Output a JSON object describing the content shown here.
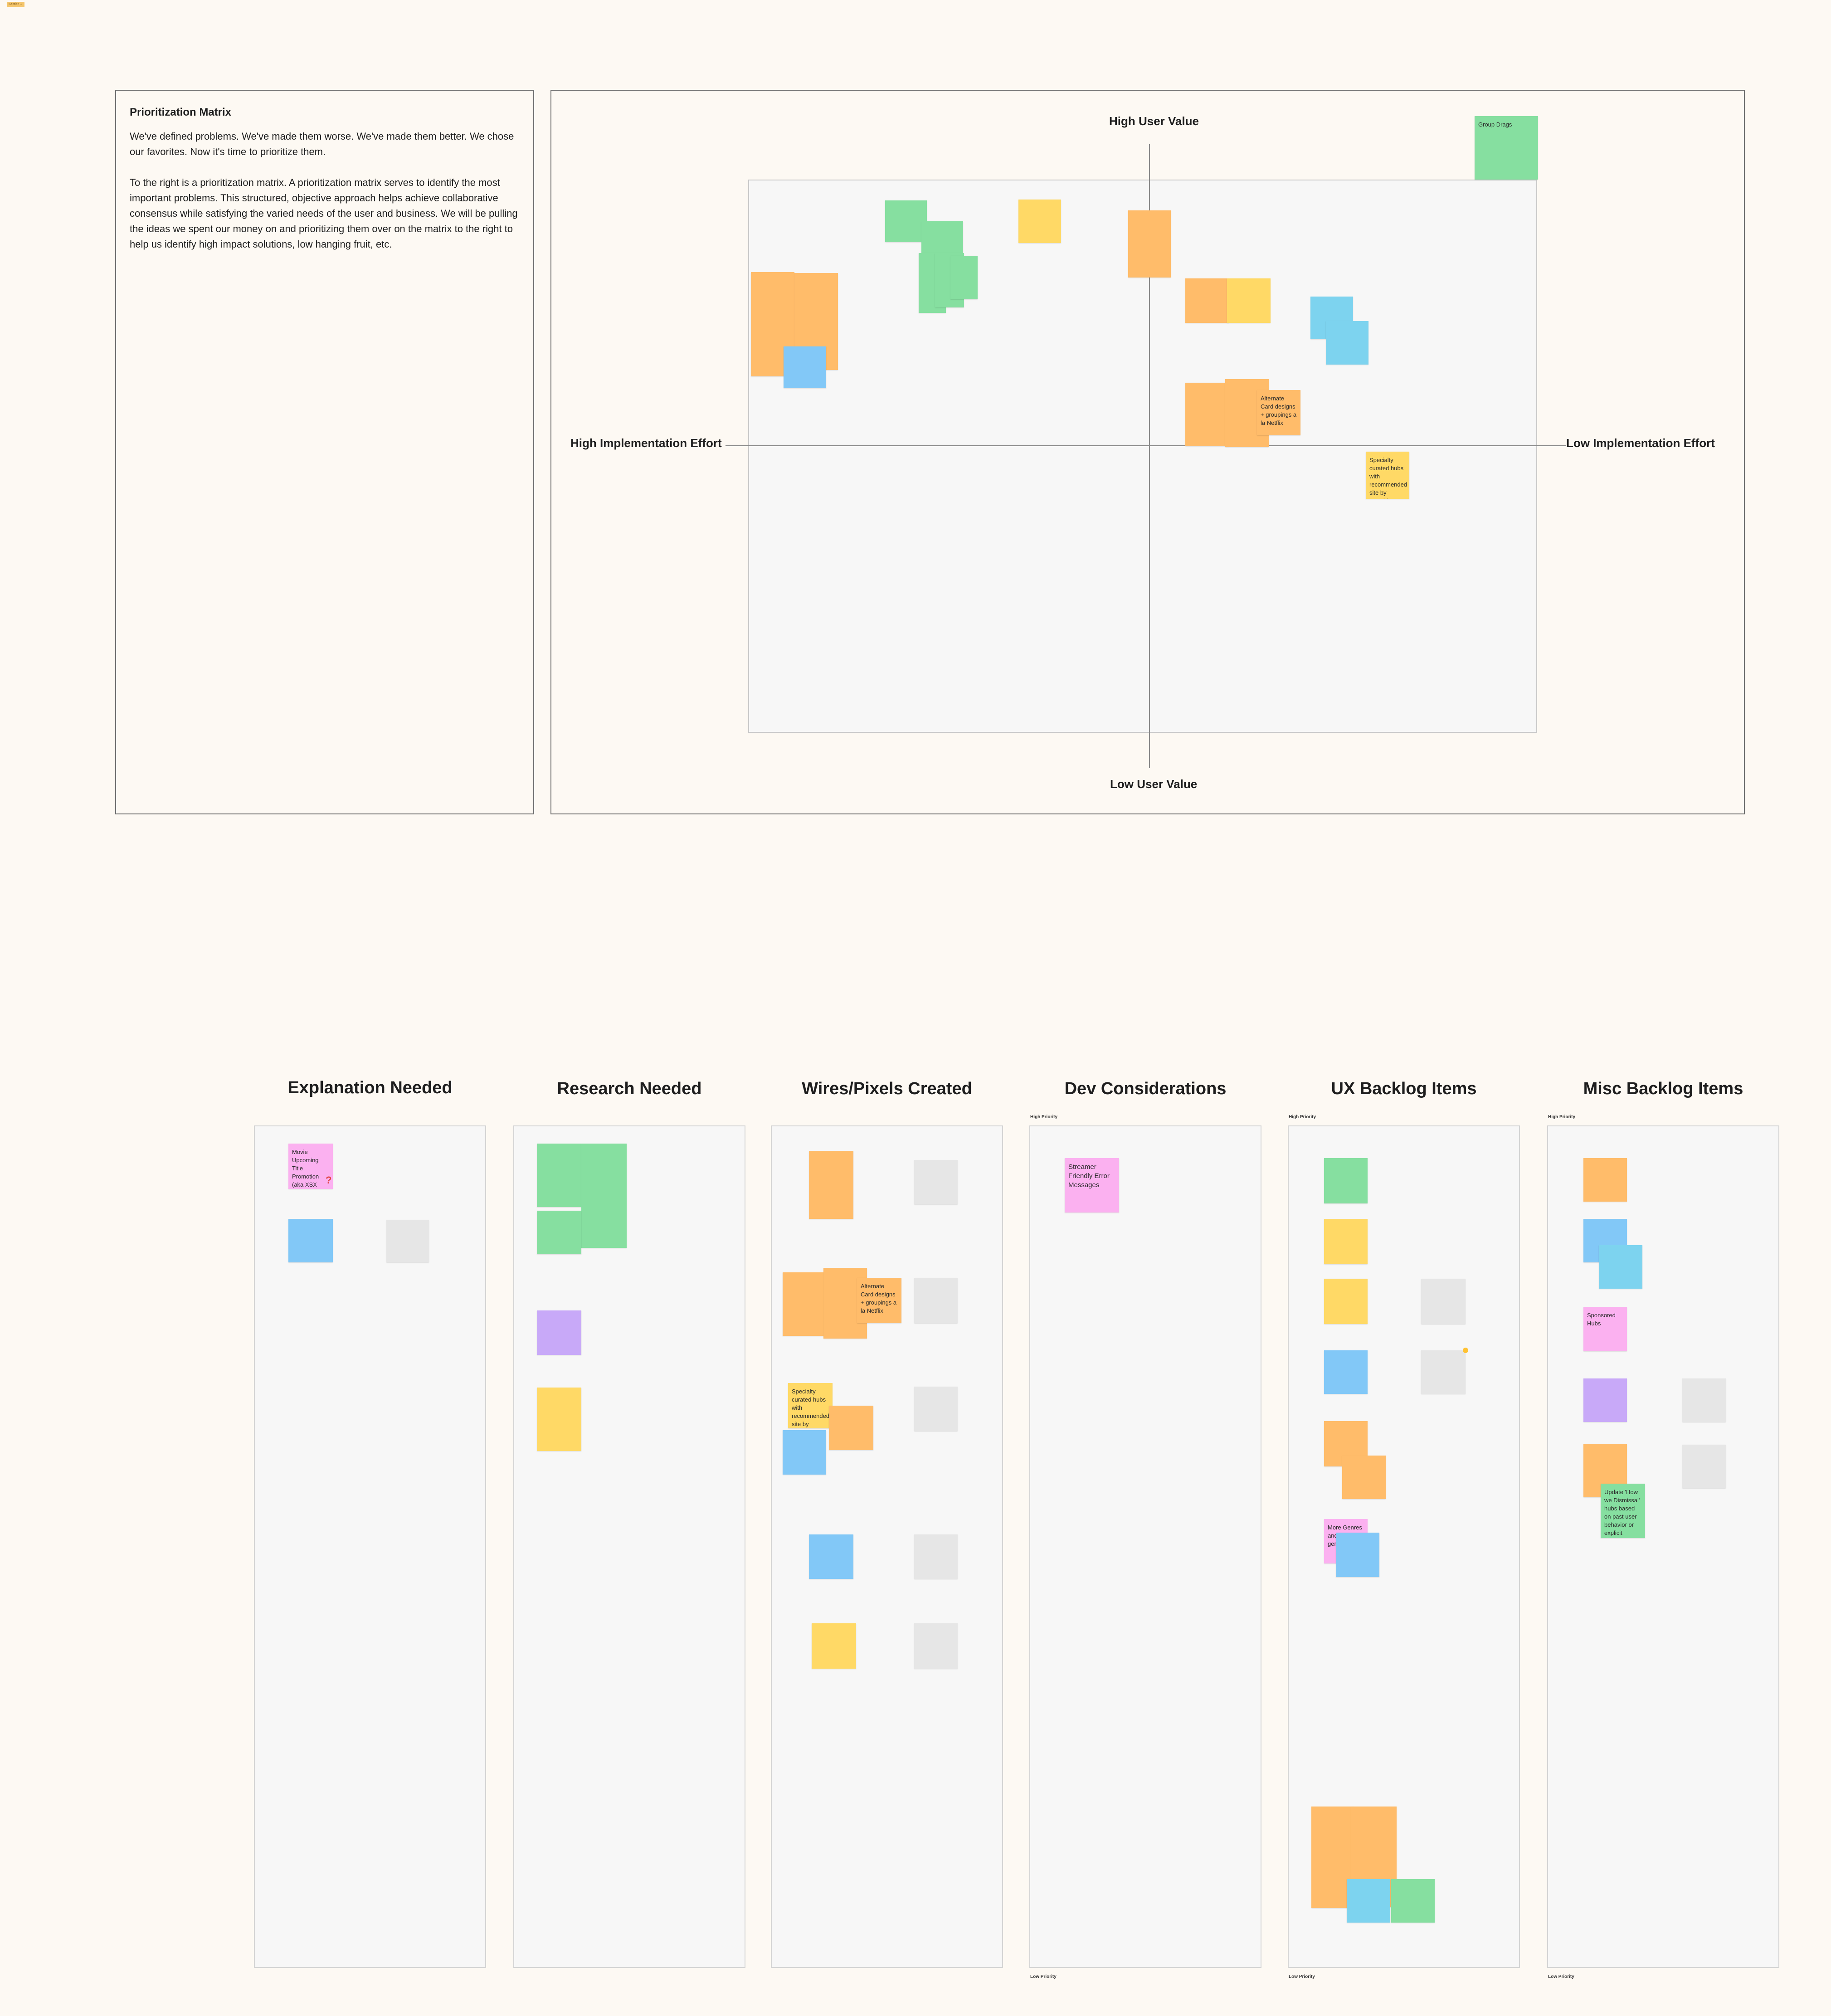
{
  "section_tag": "Section 1",
  "intro": {
    "title": "Prioritization Matrix",
    "paragraph_1": "We've defined problems. We've made them worse. We've made them better. We chose our favorites. Now it's time to prioritize them.",
    "paragraph_2": "To the right is a prioritization matrix. A prioritization matrix serves to identify the most important problems. This structured, objective approach helps achieve collaborative consensus while satisfying the varied needs of the user and business. We will be pulling the ideas we spent our money on and prioritizing them over on the matrix to the right to help us identify high impact solutions, low hanging fruit, etc."
  },
  "matrix": {
    "top_label": "High User Value",
    "bottom_label": "Low User Value",
    "left_label": "High Implementation Effort",
    "right_label": "Low Implementation Effort",
    "notes": {
      "n_group_drags": "Group Drags",
      "n_hints": "Specialty curated hubs with recommended site by actor(s) stroke/user(s)",
      "n_alt_card": "Alternate Card designs + groupings a la Netflix"
    }
  },
  "columns": {
    "explanation": "Explanation Needed",
    "research": "Research Needed",
    "wires": "Wires/Pixels Created",
    "dev": "Dev Considerations",
    "ux": "UX Backlog Items",
    "misc": "Misc Backlog Items"
  },
  "priority": {
    "high": "High Priority",
    "low": "Low Priority"
  },
  "notes": {
    "movie_upcoming": "Movie Upcoming Title Promotion (aka XSX changes)",
    "streamer_errors": "Streamer Friendly Error Messages",
    "hints_wires": "Specialty curated hubs with recommended site by actor(s) stroke/user(s)",
    "alt_card_wires": "Alternate Card designs + groupings a la Netflix",
    "sponsored_hubs": "Sponsored Hubs",
    "more_genres": "More Genres and micro genres",
    "update_hubs": "Update 'How we Dismissal' hubs based on past user behavior or explicit feedback signals"
  }
}
